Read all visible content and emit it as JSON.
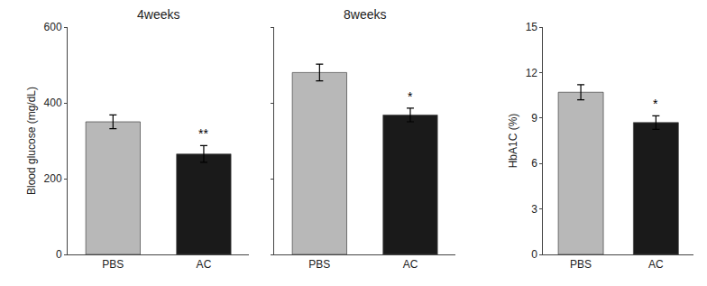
{
  "chart_data": [
    {
      "type": "bar",
      "title": "4weeks",
      "categories": [
        "PBS",
        "AC"
      ],
      "values": [
        350,
        265
      ],
      "errors": [
        18,
        22
      ],
      "colors": [
        "#b8b8b8",
        "#1a1a1a"
      ],
      "ylim": [
        0,
        600
      ],
      "yticks": [
        0,
        200,
        400,
        600
      ],
      "ylabel": "Blood glucose (mg/dL)",
      "annotations": [
        {
          "x": "AC",
          "text": "**"
        }
      ],
      "grid": false
    },
    {
      "type": "bar",
      "title": "8weeks",
      "categories": [
        "PBS",
        "AC"
      ],
      "values": [
        480,
        368
      ],
      "errors": [
        22,
        18
      ],
      "colors": [
        "#b8b8b8",
        "#1a1a1a"
      ],
      "ylim": [
        0,
        600
      ],
      "yticks": [
        0,
        200,
        400,
        600
      ],
      "tick_labels": "x",
      "annotations": [
        {
          "x": "AC",
          "text": "*"
        }
      ],
      "grid": false
    },
    {
      "type": "bar",
      "categories": [
        "PBS",
        "AC"
      ],
      "values": [
        10.7,
        8.7
      ],
      "errors": [
        0.5,
        0.45
      ],
      "colors": [
        "#b8b8b8",
        "#1a1a1a"
      ],
      "ylim": [
        0,
        15
      ],
      "yticks": [
        0,
        3,
        6,
        9,
        12,
        15
      ],
      "ylabel": "HbA1C (%)",
      "annotations": [
        {
          "x": "AC",
          "text": "*"
        }
      ],
      "grid": false
    }
  ]
}
